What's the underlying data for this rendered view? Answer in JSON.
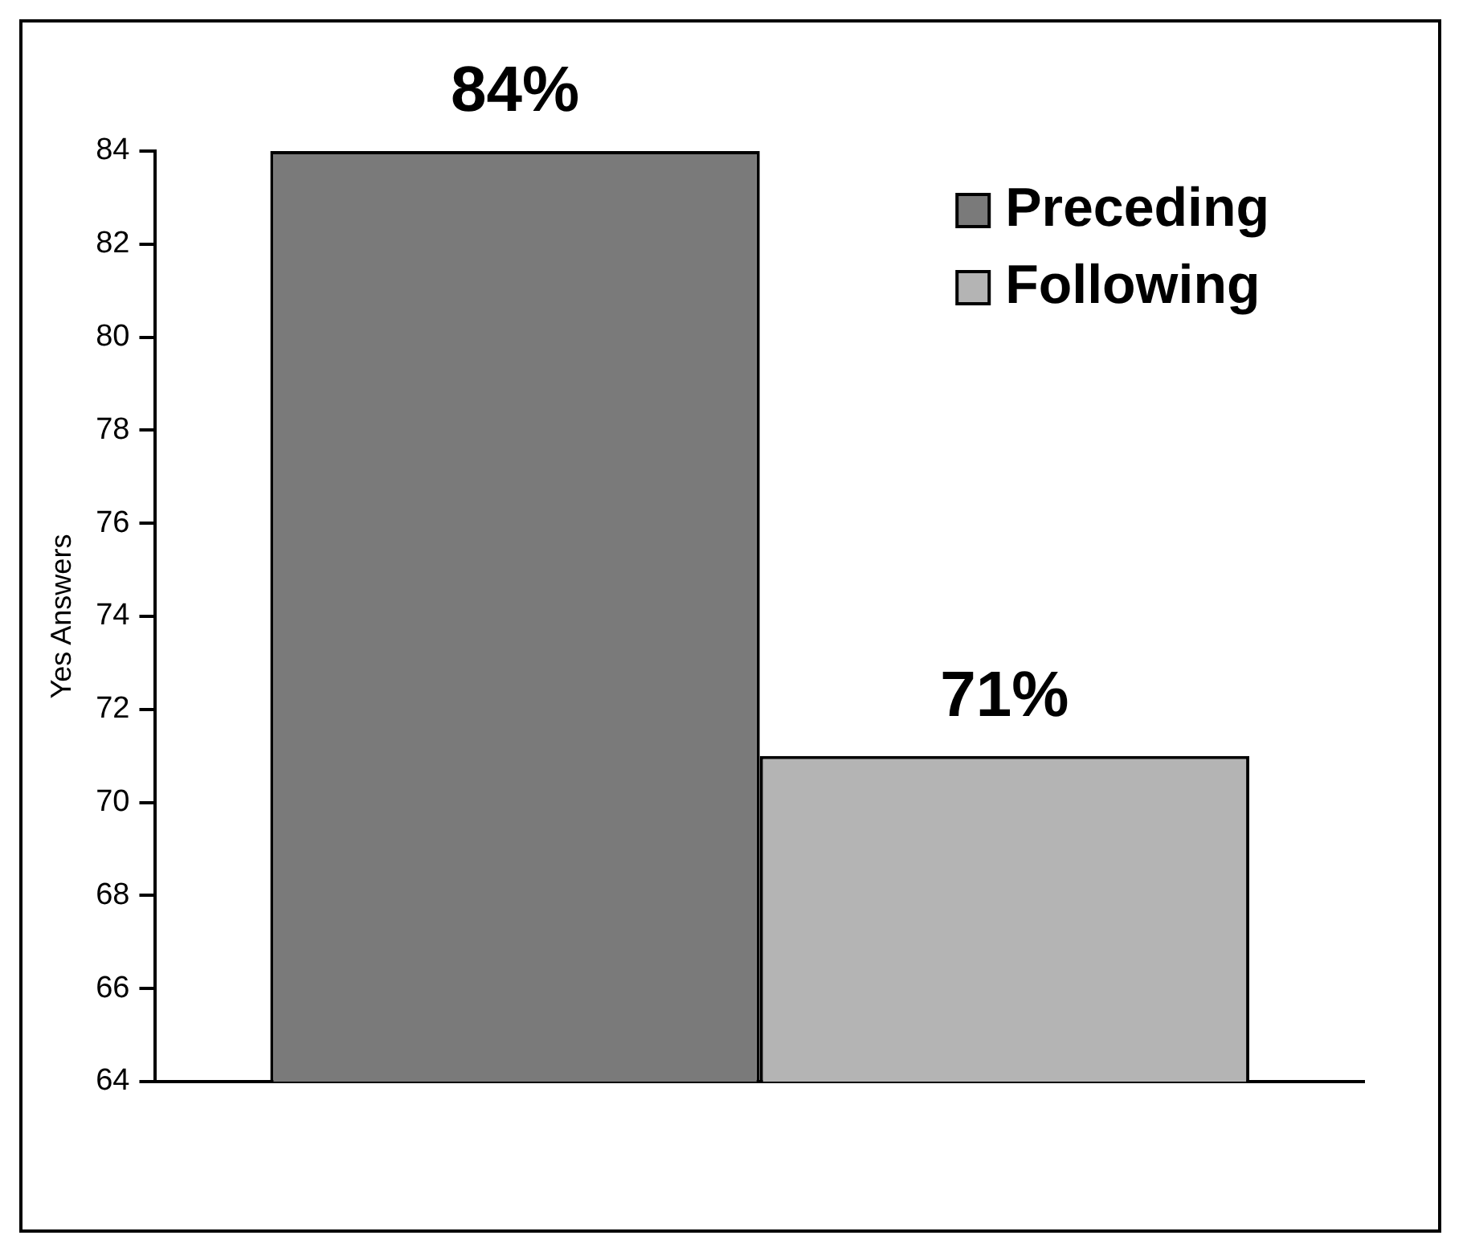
{
  "chart_data": {
    "type": "bar",
    "ylabel": "Yes Answers",
    "categories": [
      null
    ],
    "series": [
      {
        "name": "Preceding",
        "color": "#7a7a7a",
        "values": [
          84
        ],
        "value_labels": [
          "84%"
        ]
      },
      {
        "name": "Following",
        "color": "#b4b4b4",
        "values": [
          71
        ],
        "value_labels": [
          "71%"
        ]
      }
    ],
    "ylim": [
      64,
      84
    ],
    "yticks": [
      64,
      66,
      68,
      70,
      72,
      74,
      76,
      78,
      80,
      82,
      84
    ],
    "grid": false,
    "legend": "top right"
  }
}
